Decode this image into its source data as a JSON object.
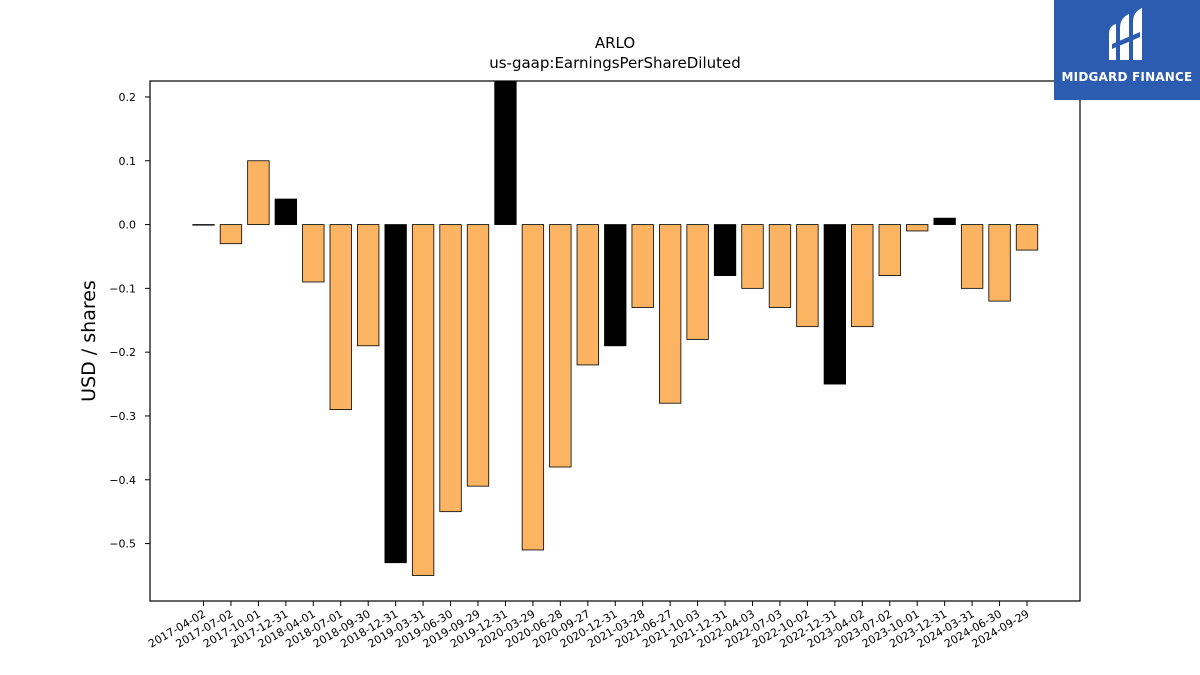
{
  "brand": {
    "name": "MIDGARD FINANCE",
    "background": "#2b5cb0"
  },
  "chart_data": {
    "type": "bar",
    "title": "ARLO",
    "subtitle": "us-gaap:EarningsPerShareDiluted",
    "xlabel": "",
    "ylabel": "USD / shares",
    "ylim": [
      -0.59,
      0.225
    ],
    "yticks": [
      0.2,
      0.1,
      0.0,
      -0.1,
      -0.2,
      -0.3,
      -0.4,
      -0.5
    ],
    "ytick_labels": [
      "0.2",
      "0.1",
      "0.0",
      "−0.1",
      "−0.2",
      "−0.3",
      "−0.4",
      "−0.5"
    ],
    "grid": false,
    "colors": {
      "quarter": "#fdb462",
      "annual": "#000000",
      "edge": "#000000"
    },
    "categories": [
      "2017-04-02",
      "2017-07-02",
      "2017-10-01",
      "2017-12-31",
      "2018-04-01",
      "2018-07-01",
      "2018-09-30",
      "2018-12-31",
      "2019-03-31",
      "2019-06-30",
      "2019-09-29",
      "2019-12-31",
      "2020-03-29",
      "2020-06-28",
      "2020-09-27",
      "2020-12-31",
      "2021-03-28",
      "2021-06-27",
      "2021-10-03",
      "2021-12-31",
      "2022-04-03",
      "2022-07-03",
      "2022-10-02",
      "2022-12-31",
      "2023-04-02",
      "2023-07-02",
      "2023-10-01",
      "2023-12-31",
      "2024-03-31",
      "2024-06-30",
      "2024-09-29"
    ],
    "values": [
      0.0,
      -0.03,
      0.1,
      0.04,
      -0.09,
      -0.29,
      -0.19,
      -0.53,
      -0.55,
      -0.45,
      -0.41,
      0.24,
      -0.51,
      -0.38,
      -0.22,
      -0.19,
      -0.13,
      -0.28,
      -0.18,
      -0.08,
      -0.1,
      -0.13,
      -0.16,
      -0.25,
      -0.16,
      -0.08,
      -0.01,
      0.01,
      -0.1,
      -0.12,
      -0.04
    ],
    "bar_kind": [
      "q",
      "q",
      "q",
      "a",
      "q",
      "q",
      "q",
      "a",
      "q",
      "q",
      "q",
      "a",
      "q",
      "q",
      "q",
      "a",
      "q",
      "q",
      "q",
      "a",
      "q",
      "q",
      "q",
      "a",
      "q",
      "q",
      "q",
      "a",
      "q",
      "q",
      "q"
    ]
  }
}
